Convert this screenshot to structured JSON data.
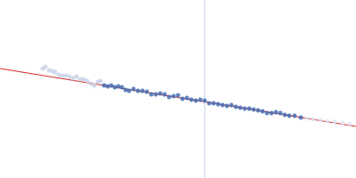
{
  "chart_data": {
    "type": "scatter",
    "xlim": [
      0,
      400
    ],
    "ylim": [
      0,
      200
    ],
    "tick_labels": false,
    "grid": false,
    "series": [
      {
        "type": "scatter",
        "marker": "circle",
        "color": "#c5d0e6",
        "x": [
          48,
          51,
          55,
          59,
          62,
          66,
          70,
          74,
          78,
          82,
          86,
          90,
          94,
          98,
          102,
          106,
          110,
          113
        ],
        "values": [
          123,
          125,
          121,
          120,
          119,
          116,
          115,
          115,
          114,
          112,
          114,
          111,
          111,
          109,
          106,
          104,
          108,
          109
        ]
      },
      {
        "type": "scatter",
        "marker": "circle",
        "color": "#3a66b0",
        "x": [
          117,
          121,
          125,
          129,
          133,
          137,
          141,
          145,
          150,
          155,
          160,
          165,
          170,
          175,
          180,
          185,
          190,
          195,
          200,
          205,
          210,
          215,
          220,
          225,
          230,
          235,
          240,
          245,
          250,
          255,
          260,
          265,
          270,
          275,
          280,
          285,
          290,
          295,
          300,
          305,
          310,
          315,
          320,
          325,
          331,
          338
        ],
        "values": [
          104,
          103,
          104,
          102,
          103,
          102,
          99,
          98,
          100,
          98,
          98,
          97,
          94,
          94,
          95,
          94,
          91,
          92,
          93,
          89,
          90,
          88,
          87,
          88,
          87,
          84,
          84,
          83,
          82,
          81,
          82,
          80,
          79,
          78,
          78,
          77,
          76,
          75,
          73,
          73,
          74,
          73,
          71,
          70,
          70,
          68
        ]
      },
      {
        "type": "scatter",
        "marker": "circle",
        "color": "#dde3f0",
        "x": [
          345,
          352,
          360,
          368,
          376,
          385,
          393
        ],
        "values": [
          67,
          66,
          65,
          64,
          63,
          62,
          61
        ]
      },
      {
        "type": "line",
        "line_style": "solid",
        "color": "#d42a2a",
        "x": [
          0,
          400
        ],
        "values": [
          123,
          58
        ]
      },
      {
        "type": "line",
        "line_style": "solid",
        "color": "#cdd6e8",
        "x": [
          230,
          230
        ],
        "values": [
          0,
          200
        ]
      }
    ]
  }
}
